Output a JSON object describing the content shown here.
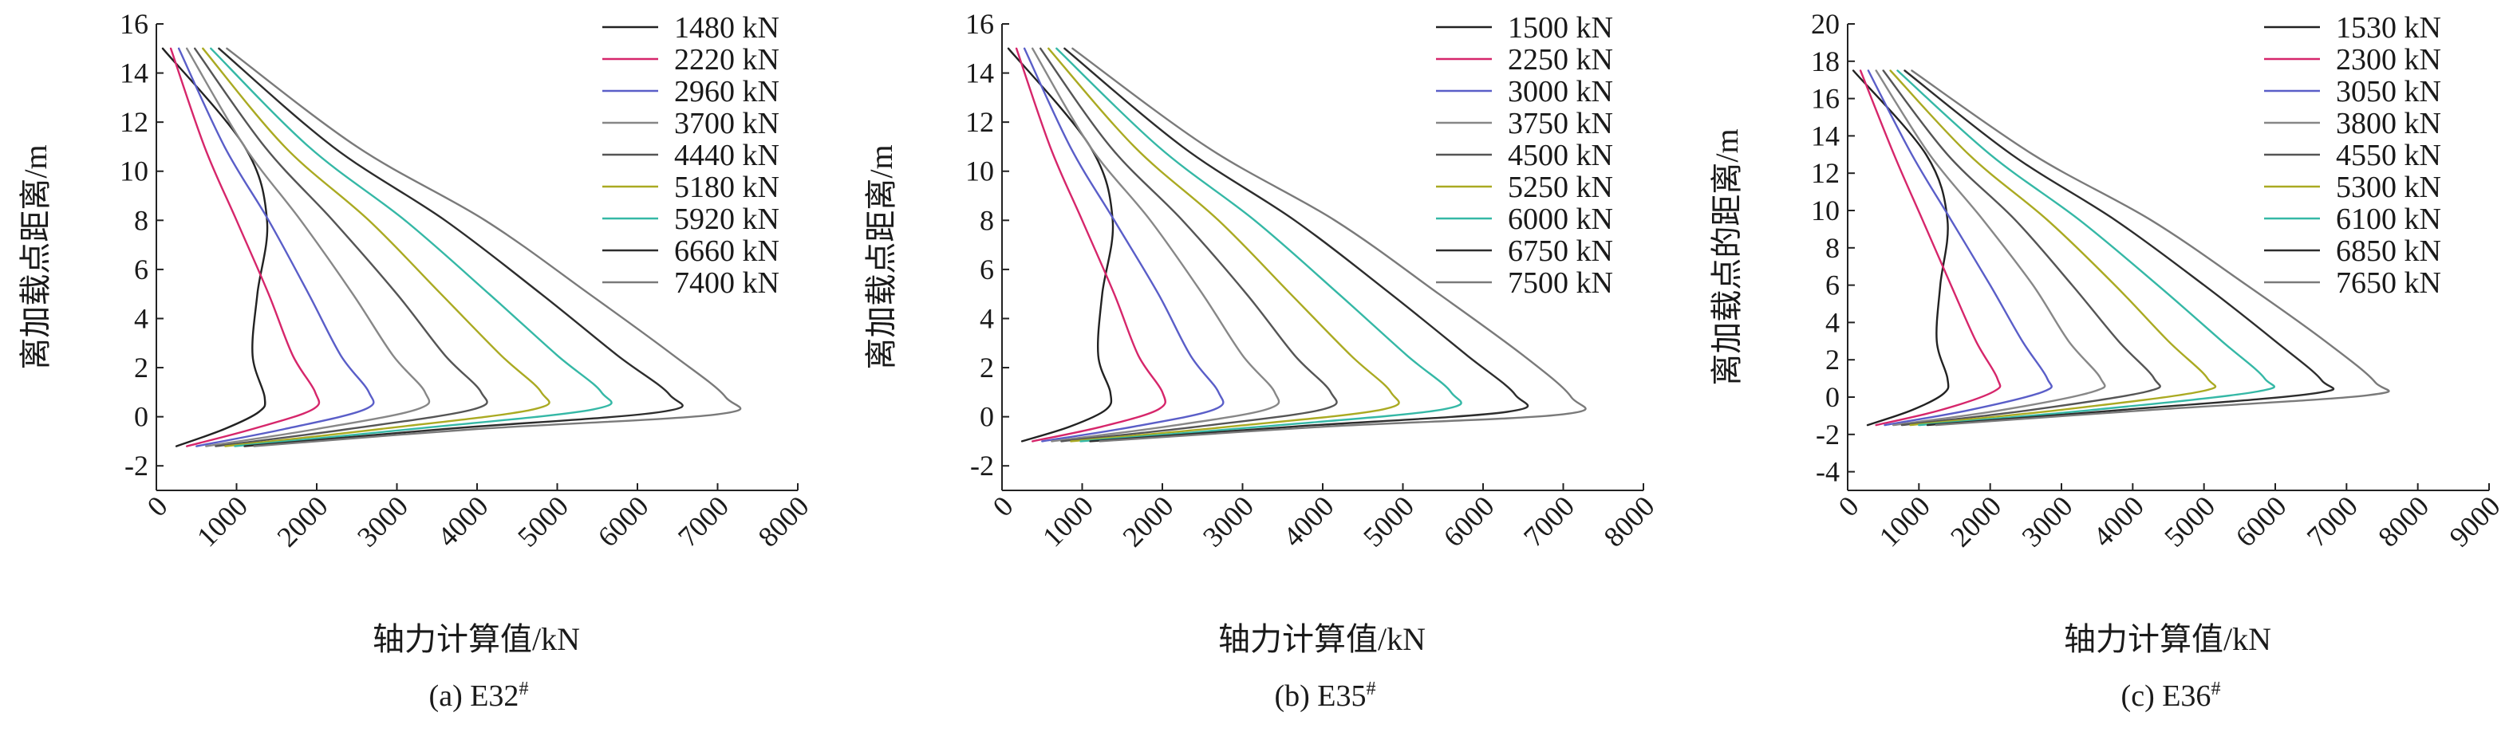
{
  "series_colors": [
    "#222222",
    "#d6266b",
    "#5a5ec8",
    "#878787",
    "#555555",
    "#aaaa22",
    "#35b8a6",
    "#2d2d2d",
    "#7a7a7a"
  ],
  "chart_data": [
    {
      "type": "line",
      "caption": "(a) E32",
      "caption_sup": "#",
      "xlabel": "轴力计算值/kN",
      "ylabel": "离加载点距离/m",
      "xlim": [
        0,
        8000
      ],
      "ylim": [
        -3,
        16
      ],
      "xticks": [
        0,
        1000,
        2000,
        3000,
        4000,
        5000,
        6000,
        7000,
        8000
      ],
      "yticks": [
        -2,
        0,
        2,
        4,
        6,
        8,
        10,
        12,
        14,
        16
      ],
      "legend_position": "top-right",
      "series": [
        {
          "name": "1480 kN",
          "x": [
            250,
            850,
            1280,
            1350,
            1200,
            1260,
            1380,
            1100,
            80
          ],
          "y": [
            -1.2,
            -0.5,
            0.2,
            0.8,
            2.5,
            5.0,
            8.0,
            11.0,
            15.0
          ]
        },
        {
          "name": "2220 kN",
          "x": [
            380,
            1200,
            1950,
            1980,
            1700,
            1400,
            1000,
            600,
            180
          ],
          "y": [
            -1.2,
            -0.5,
            0.3,
            1.0,
            2.5,
            5.0,
            8.0,
            11.0,
            15.0
          ]
        },
        {
          "name": "2960 kN",
          "x": [
            500,
            1600,
            2600,
            2650,
            2300,
            1900,
            1400,
            850,
            280
          ],
          "y": [
            -1.2,
            -0.5,
            0.3,
            1.0,
            2.5,
            5.0,
            8.0,
            11.0,
            15.0
          ]
        },
        {
          "name": "3700 kN",
          "x": [
            620,
            2000,
            3250,
            3350,
            2950,
            2450,
            1800,
            1100,
            380
          ],
          "y": [
            -1.2,
            -0.5,
            0.3,
            1.0,
            2.5,
            5.0,
            8.0,
            11.0,
            15.0
          ]
        },
        {
          "name": "4440 kN",
          "x": [
            740,
            2400,
            3950,
            4050,
            3600,
            3000,
            2200,
            1350,
            480
          ],
          "y": [
            -1.2,
            -0.5,
            0.3,
            1.0,
            2.5,
            5.0,
            8.0,
            11.0,
            15.0
          ]
        },
        {
          "name": "5180 kN",
          "x": [
            860,
            2800,
            4700,
            4800,
            4300,
            3550,
            2650,
            1600,
            580
          ],
          "y": [
            -1.2,
            -0.5,
            0.3,
            1.0,
            2.5,
            5.0,
            8.0,
            11.0,
            15.0
          ]
        },
        {
          "name": "5920 kN",
          "x": [
            980,
            3200,
            5450,
            5550,
            5000,
            4150,
            3100,
            1900,
            680
          ],
          "y": [
            -1.2,
            -0.5,
            0.3,
            1.0,
            2.5,
            5.0,
            8.0,
            11.0,
            15.0
          ]
        },
        {
          "name": "6660 kN",
          "x": [
            1100,
            3600,
            6300,
            6400,
            5750,
            4800,
            3600,
            2200,
            780
          ],
          "y": [
            -1.2,
            -0.5,
            0.2,
            0.9,
            2.5,
            5.0,
            8.0,
            11.0,
            15.0
          ]
        },
        {
          "name": "7400 kN",
          "x": [
            1220,
            4000,
            7000,
            7100,
            6450,
            5400,
            4100,
            2500,
            880
          ],
          "y": [
            -1.2,
            -0.5,
            0.1,
            0.8,
            2.5,
            5.0,
            8.0,
            11.0,
            15.0
          ]
        }
      ]
    },
    {
      "type": "line",
      "caption": "(b) E35",
      "caption_sup": "#",
      "xlabel": "轴力计算值/kN",
      "ylabel": "离加载点距离/m",
      "xlim": [
        0,
        8000
      ],
      "ylim": [
        -3,
        16
      ],
      "xticks": [
        0,
        1000,
        2000,
        3000,
        4000,
        5000,
        6000,
        7000,
        8000
      ],
      "yticks": [
        -2,
        0,
        2,
        4,
        6,
        8,
        10,
        12,
        14,
        16
      ],
      "legend_position": "top-right",
      "series": [
        {
          "name": "1500 kN",
          "x": [
            250,
            850,
            1300,
            1350,
            1200,
            1250,
            1380,
            1100,
            80
          ],
          "y": [
            -1.0,
            -0.4,
            0.3,
            1.0,
            2.5,
            5.0,
            8.0,
            11.0,
            15.0
          ]
        },
        {
          "name": "2250 kN",
          "x": [
            380,
            1250,
            1950,
            2000,
            1700,
            1400,
            1000,
            600,
            180
          ],
          "y": [
            -1.0,
            -0.4,
            0.3,
            1.0,
            2.5,
            5.0,
            8.0,
            11.0,
            15.0
          ]
        },
        {
          "name": "3000 kN",
          "x": [
            500,
            1650,
            2650,
            2700,
            2350,
            1950,
            1400,
            850,
            280
          ],
          "y": [
            -1.0,
            -0.4,
            0.3,
            1.0,
            2.5,
            5.0,
            8.0,
            11.0,
            15.0
          ]
        },
        {
          "name": "3750 kN",
          "x": [
            620,
            2050,
            3300,
            3400,
            3000,
            2500,
            1850,
            1100,
            380
          ],
          "y": [
            -1.0,
            -0.4,
            0.3,
            1.0,
            2.5,
            5.0,
            8.0,
            11.0,
            15.0
          ]
        },
        {
          "name": "4500 kN",
          "x": [
            740,
            2450,
            4000,
            4100,
            3650,
            3050,
            2250,
            1350,
            480
          ],
          "y": [
            -1.0,
            -0.4,
            0.3,
            1.0,
            2.5,
            5.0,
            8.0,
            11.0,
            15.0
          ]
        },
        {
          "name": "5250 kN",
          "x": [
            860,
            2850,
            4750,
            4850,
            4350,
            3600,
            2700,
            1650,
            580
          ],
          "y": [
            -1.0,
            -0.4,
            0.3,
            1.0,
            2.5,
            5.0,
            8.0,
            11.0,
            15.0
          ]
        },
        {
          "name": "6000 kN",
          "x": [
            980,
            3250,
            5500,
            5600,
            5050,
            4200,
            3150,
            1950,
            680
          ],
          "y": [
            -1.0,
            -0.4,
            0.3,
            1.0,
            2.5,
            5.0,
            8.0,
            11.0,
            15.0
          ]
        },
        {
          "name": "6750 kN",
          "x": [
            1100,
            3650,
            6300,
            6400,
            5800,
            4850,
            3650,
            2250,
            780
          ],
          "y": [
            -1.0,
            -0.4,
            0.2,
            0.9,
            2.5,
            5.0,
            8.0,
            11.0,
            15.0
          ]
        },
        {
          "name": "7500 kN",
          "x": [
            1220,
            4050,
            7000,
            7100,
            6500,
            5450,
            4150,
            2550,
            880
          ],
          "y": [
            -1.0,
            -0.4,
            0.1,
            0.8,
            2.5,
            5.0,
            8.0,
            11.0,
            15.0
          ]
        }
      ]
    },
    {
      "type": "line",
      "caption": "(c) E36",
      "caption_sup": "#",
      "xlabel": "轴力计算值/kN",
      "ylabel": "离加载点的距离/m",
      "xlim": [
        0,
        9000
      ],
      "ylim": [
        -5,
        20
      ],
      "xticks": [
        0,
        1000,
        2000,
        3000,
        4000,
        5000,
        6000,
        7000,
        8000,
        9000
      ],
      "yticks": [
        -4,
        -2,
        0,
        2,
        4,
        6,
        8,
        10,
        12,
        14,
        16,
        18,
        20
      ],
      "legend_position": "top-right",
      "series": [
        {
          "name": "1530 kN",
          "x": [
            280,
            900,
            1350,
            1400,
            1250,
            1300,
            1400,
            1100,
            80
          ],
          "y": [
            -1.5,
            -0.7,
            0.2,
            1.0,
            3.0,
            6.0,
            9.5,
            13.0,
            17.5
          ]
        },
        {
          "name": "2300 kN",
          "x": [
            400,
            1300,
            2050,
            2100,
            1800,
            1450,
            1050,
            650,
            180
          ],
          "y": [
            -1.5,
            -0.7,
            0.3,
            1.0,
            3.0,
            6.0,
            9.5,
            13.0,
            17.5
          ]
        },
        {
          "name": "3050 kN",
          "x": [
            520,
            1700,
            2750,
            2800,
            2450,
            2000,
            1450,
            900,
            290
          ],
          "y": [
            -1.5,
            -0.7,
            0.3,
            1.0,
            3.0,
            6.0,
            9.5,
            13.0,
            17.5
          ]
        },
        {
          "name": "3800 kN",
          "x": [
            640,
            2150,
            3450,
            3550,
            3100,
            2600,
            1900,
            1150,
            400
          ],
          "y": [
            -1.5,
            -0.7,
            0.3,
            1.0,
            3.0,
            6.0,
            9.5,
            13.0,
            17.5
          ]
        },
        {
          "name": "4550 kN",
          "x": [
            760,
            2550,
            4200,
            4300,
            3800,
            3150,
            2350,
            1400,
            500
          ],
          "y": [
            -1.5,
            -0.7,
            0.3,
            1.0,
            3.0,
            6.0,
            9.5,
            13.0,
            17.5
          ]
        },
        {
          "name": "5300 kN",
          "x": [
            880,
            2950,
            4950,
            5050,
            4500,
            3750,
            2800,
            1700,
            600
          ],
          "y": [
            -1.5,
            -0.7,
            0.3,
            1.0,
            3.0,
            6.0,
            9.5,
            13.0,
            17.5
          ]
        },
        {
          "name": "6100 kN",
          "x": [
            1000,
            3400,
            5750,
            5850,
            5250,
            4350,
            3250,
            2000,
            700
          ],
          "y": [
            -1.5,
            -0.7,
            0.3,
            1.0,
            3.0,
            6.0,
            9.5,
            13.0,
            17.5
          ]
        },
        {
          "name": "6850 kN",
          "x": [
            1120,
            3800,
            6550,
            6650,
            6000,
            5000,
            3750,
            2300,
            800
          ],
          "y": [
            -1.5,
            -0.7,
            0.2,
            0.9,
            3.0,
            6.0,
            9.5,
            13.0,
            17.5
          ]
        },
        {
          "name": "7650 kN",
          "x": [
            1240,
            4200,
            7300,
            7400,
            6700,
            5600,
            4250,
            2600,
            900
          ],
          "y": [
            -1.5,
            -0.7,
            0.1,
            0.8,
            3.0,
            6.0,
            9.5,
            13.0,
            17.5
          ]
        }
      ]
    }
  ]
}
